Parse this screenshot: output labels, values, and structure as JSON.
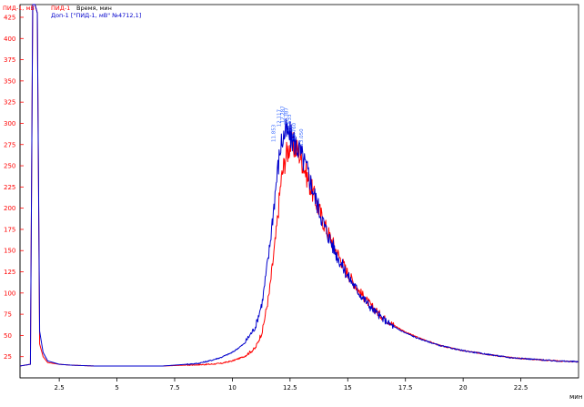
{
  "header": {
    "ylabel": "ПИД-1, мВ",
    "series_label": "ПИД-1",
    "time_label": "Время, мин",
    "overlay_label": "Доп-1 [\"ПИД-1, мВ\" №4712,1]"
  },
  "chart_data": {
    "type": "line",
    "title": "",
    "xlabel": "мин",
    "ylabel": "ПИД-1, мВ",
    "xlim": [
      0.8,
      25.0
    ],
    "ylim": [
      0,
      440
    ],
    "grid": false,
    "x_ticks": [
      2.5,
      5,
      7.5,
      10,
      12.5,
      15,
      17.5,
      20,
      22.5
    ],
    "x_tick_labels": [
      "2.5",
      "5",
      "7.5",
      "10",
      "12.5",
      "15",
      "17.5",
      "20",
      "22.5"
    ],
    "y_ticks": [
      25,
      50,
      75,
      100,
      125,
      150,
      175,
      200,
      225,
      250,
      275,
      300,
      325,
      350,
      375,
      400,
      425
    ],
    "y_tick_labels": [
      "25",
      "50",
      "75",
      "100",
      "125",
      "150",
      "175",
      "200",
      "225",
      "250",
      "275",
      "300",
      "325",
      "350",
      "375",
      "400",
      "425"
    ],
    "series": [
      {
        "name": "ПИД-1",
        "color": "#ff0000",
        "x": [
          0.8,
          1.25,
          1.35,
          1.45,
          1.55,
          1.65,
          1.8,
          2.0,
          2.5,
          3,
          4,
          5,
          6,
          7,
          8,
          9,
          9.5,
          10,
          10.5,
          11,
          11.3,
          11.6,
          11.9,
          12.1,
          12.3,
          12.5,
          12.7,
          12.9,
          13.1,
          13.3,
          13.6,
          14,
          14.5,
          15,
          15.5,
          16,
          16.5,
          17,
          17.5,
          18,
          19,
          20,
          21,
          22,
          23,
          24,
          25
        ],
        "y": [
          14,
          16,
          440,
          440,
          430,
          40,
          25,
          18,
          16,
          15,
          14,
          14,
          14,
          14,
          15,
          16,
          17,
          20,
          25,
          35,
          55,
          100,
          170,
          230,
          260,
          275,
          272,
          265,
          250,
          232,
          210,
          180,
          150,
          123,
          102,
          85,
          72,
          62,
          54,
          48,
          38,
          32,
          28,
          24,
          22,
          20,
          19
        ]
      },
      {
        "name": "Доп-1",
        "color": "#0000cc",
        "x": [
          0.8,
          1.25,
          1.35,
          1.45,
          1.55,
          1.65,
          1.8,
          2.0,
          2.5,
          3,
          4,
          5,
          6,
          7,
          8,
          8.5,
          9,
          9.5,
          10,
          10.5,
          11,
          11.3,
          11.6,
          11.9,
          12.1,
          12.3,
          12.5,
          12.7,
          12.9,
          13.1,
          13.3,
          13.6,
          14,
          14.5,
          15,
          15.5,
          16,
          16.5,
          17,
          17.5,
          18,
          19,
          20,
          21,
          22,
          23,
          24,
          25
        ],
        "y": [
          14,
          16,
          440,
          440,
          430,
          55,
          30,
          20,
          16,
          15,
          14,
          14,
          14,
          14,
          16,
          17,
          20,
          24,
          30,
          40,
          60,
          90,
          150,
          230,
          275,
          290,
          285,
          278,
          268,
          255,
          240,
          212,
          178,
          146,
          120,
          100,
          83,
          70,
          60,
          53,
          47,
          38,
          32,
          28,
          24,
          22,
          20,
          19
        ]
      }
    ],
    "peak_labels": [
      {
        "x": 11.85,
        "y": 278,
        "text": "11.853"
      },
      {
        "x": 12.1,
        "y": 296,
        "text": "12.117"
      },
      {
        "x": 12.25,
        "y": 300,
        "text": "12.287"
      },
      {
        "x": 12.4,
        "y": 298,
        "text": "12.387"
      },
      {
        "x": 12.55,
        "y": 290,
        "text": "12.533"
      },
      {
        "x": 12.75,
        "y": 280,
        "text": "12.760"
      },
      {
        "x": 13.05,
        "y": 273,
        "text": "13.050"
      }
    ]
  }
}
